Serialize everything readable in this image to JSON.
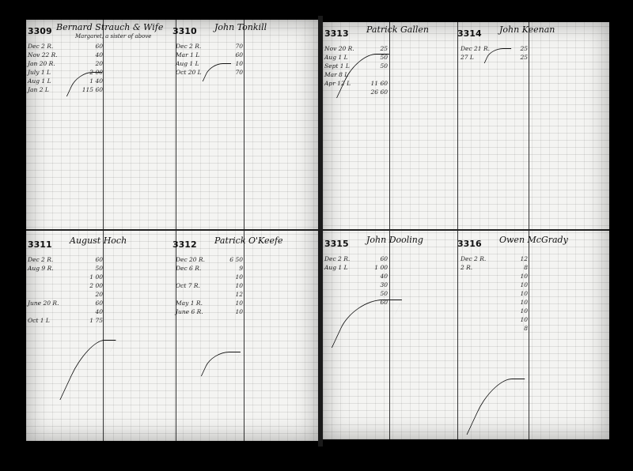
{
  "left_page": {
    "accounts": [
      {
        "number": "3309",
        "name": "Bernard Strauch & Wife",
        "note": "Margaret, a sister of above",
        "rows": [
          [
            "Dec 2 R.",
            "60"
          ],
          [
            "Nov 22 R.",
            "40"
          ],
          [
            "Jan 20 R.",
            "20"
          ],
          [
            "July 1 L",
            "2 00"
          ],
          [
            "Aug 1 L",
            "1 40"
          ],
          [
            "Jan 2 L",
            "115 60"
          ]
        ]
      },
      {
        "number": "3310",
        "name": "John Tonkill",
        "note": "",
        "rows": [
          [
            "Dec 2 R.",
            "70"
          ],
          [
            "Mar 1 L",
            "60"
          ],
          [
            "Aug 1 L",
            "10"
          ],
          [
            "Oct 20 L",
            "70"
          ]
        ]
      },
      {
        "number": "3311",
        "name": "August Hoch",
        "note": "",
        "rows": [
          [
            "Dec 2 R.",
            "60"
          ],
          [
            "Aug 9 R.",
            "50"
          ],
          [
            "",
            "1 00"
          ],
          [
            "",
            "2 00"
          ],
          [
            "",
            "20"
          ],
          [
            "June 20 R.",
            "60"
          ],
          [
            "",
            "40"
          ],
          [
            "Oct 1 L",
            "1 75"
          ]
        ]
      },
      {
        "number": "3312",
        "name": "Patrick O'Keefe",
        "note": "",
        "rows": [
          [
            "Dec 20 R.",
            "6 50"
          ],
          [
            "Dec 6 R.",
            "9"
          ],
          [
            "",
            "10"
          ],
          [
            "Oct 7 R.",
            "10"
          ],
          [
            "",
            "12"
          ],
          [
            "May 1 R.",
            "10"
          ],
          [
            "June 6 R.",
            "10"
          ]
        ]
      }
    ]
  },
  "right_page": {
    "accounts": [
      {
        "number": "3313",
        "name": "Patrick Gallen",
        "note": "",
        "rows": [
          [
            "Nov 20 R.",
            "25"
          ],
          [
            "Aug 1 L",
            "50"
          ],
          [
            "Sept 1 L",
            "50"
          ],
          [
            "Mar 8 L",
            ""
          ],
          [
            "Apr 12 L",
            "11 60"
          ],
          [
            "",
            "26 60"
          ]
        ]
      },
      {
        "number": "3314",
        "name": "John Keenan",
        "note": "",
        "rows": [
          [
            "Dec 21 R.",
            "25"
          ],
          [
            "27 L",
            "25"
          ]
        ]
      },
      {
        "number": "3315",
        "name": "John Dooling",
        "note": "",
        "rows": [
          [
            "Dec 2 R.",
            "60"
          ],
          [
            "Aug 1 L",
            "1 00"
          ],
          [
            "",
            "40"
          ],
          [
            "",
            "30"
          ],
          [
            "",
            "50"
          ],
          [
            "",
            "60"
          ]
        ]
      },
      {
        "number": "3316",
        "name": "Owen McGrady",
        "note": "",
        "rows": [
          [
            "Dec 2 R.",
            "12"
          ],
          [
            "2 R.",
            "8"
          ],
          [
            "",
            "10"
          ],
          [
            "",
            "10"
          ],
          [
            "",
            "10"
          ],
          [
            "",
            "10"
          ],
          [
            "",
            "10"
          ],
          [
            "",
            "10"
          ],
          [
            "",
            "8"
          ]
        ]
      }
    ]
  }
}
